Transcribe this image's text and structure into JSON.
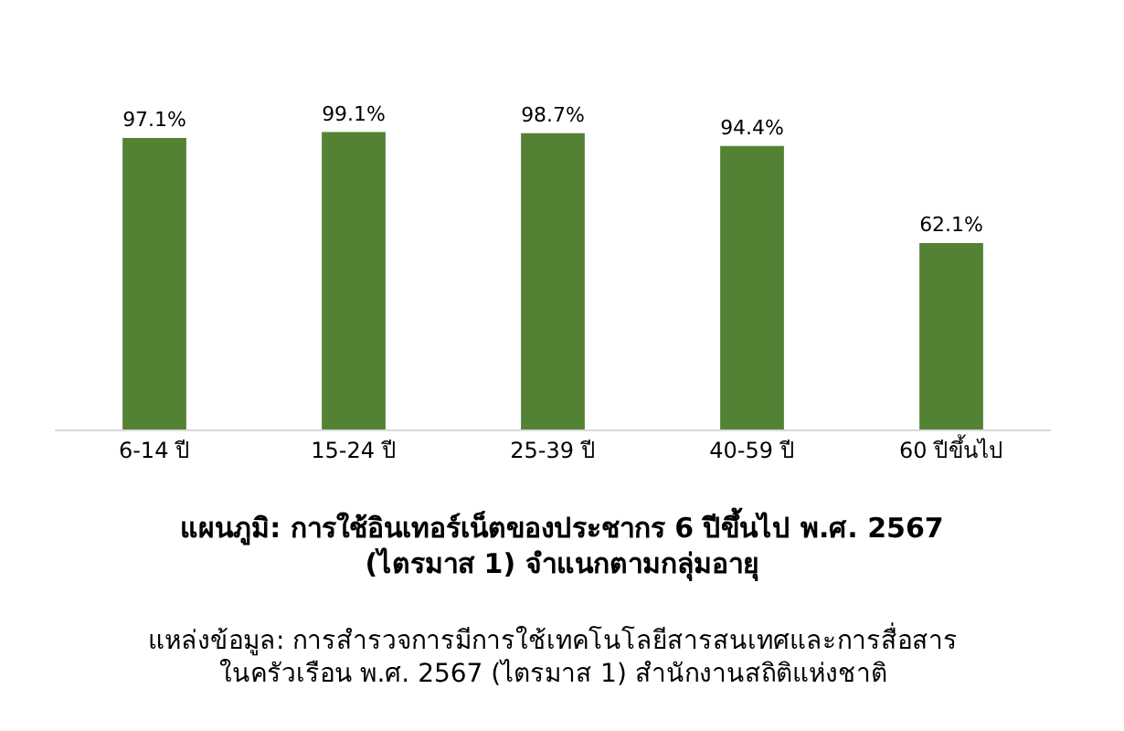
{
  "chart_data": {
    "type": "bar",
    "title": "แผนภูมิ: การใช้อินเทอร์เน็ตของประชากร 6 ปีขึ้นไป พ.ศ. 2567\n(ไตรมาส 1) จำแนกตามกลุ่มอายุ",
    "categories": [
      "6-14 ปี",
      "15-24 ปี",
      "25-39 ปี",
      "40-59 ปี",
      "60 ปีขึ้นไป"
    ],
    "values": [
      97.1,
      99.1,
      98.7,
      94.4,
      62.1
    ],
    "value_labels": [
      "97.1%",
      "99.1%",
      "98.7%",
      "94.4%",
      "62.1%"
    ],
    "color": "#548235",
    "annotations": [
      "แหล่งข้อมูล: การสำรวจการมีการใช้เทคโนโลยีสารสนเทศและการสื่อสาร\nในครัวเรือน พ.ศ. 2567 (ไตรมาส 1) สำนักงานสถิติแห่งชาติ"
    ]
  }
}
